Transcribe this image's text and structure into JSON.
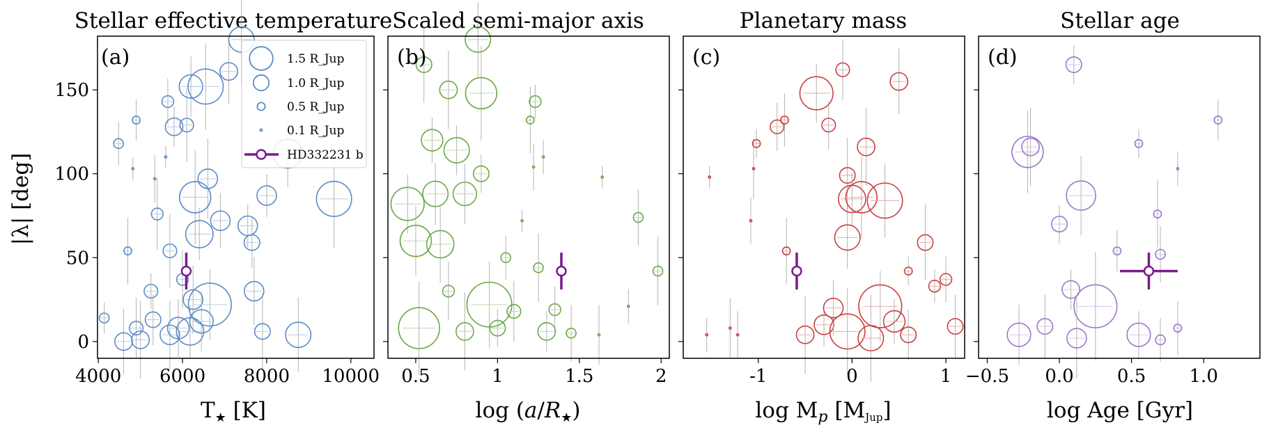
{
  "y_axis": {
    "label": "|λ| [deg]",
    "ylim": [
      -10,
      182
    ],
    "ticks": [
      0,
      50,
      100,
      150
    ]
  },
  "legend": {
    "placement": "upper-right of panel (a)",
    "size_entries": [
      "1.5 R_Jup",
      "1.0 R_Jup",
      "0.5 R_Jup",
      "0.1 R_Jup"
    ],
    "highlight_entry": "HD332231 b"
  },
  "chart_data": [
    {
      "type": "scatter",
      "panel_letter": "(a)",
      "title": "Stellar effective temperature",
      "xlabel": "T★ [K]",
      "xlim": [
        3980,
        10550
      ],
      "xticks": [
        4000,
        6000,
        8000,
        10000
      ],
      "ylim": [
        -10,
        182
      ],
      "color": "#5b8bc6",
      "highlight": {
        "name": "HD332231 b",
        "x": 6089,
        "y": 42,
        "xerr": 96,
        "yerr": 11
      },
      "points": [
        {
          "x": 4140,
          "y": 14,
          "r": 0.5
        },
        {
          "x": 4480,
          "y": 118,
          "r": 0.5
        },
        {
          "x": 4600,
          "y": 0,
          "r": 0.9
        },
        {
          "x": 4700,
          "y": 54,
          "r": 0.4
        },
        {
          "x": 4820,
          "y": 103,
          "r": 0.1
        },
        {
          "x": 4900,
          "y": 132,
          "r": 0.4
        },
        {
          "x": 4900,
          "y": 8,
          "r": 0.7
        },
        {
          "x": 5000,
          "y": 1,
          "r": 0.9
        },
        {
          "x": 5250,
          "y": 30,
          "r": 0.7
        },
        {
          "x": 5300,
          "y": 13,
          "r": 0.8
        },
        {
          "x": 5340,
          "y": 97,
          "r": 0.1
        },
        {
          "x": 5400,
          "y": 76,
          "r": 0.6
        },
        {
          "x": 5600,
          "y": 110,
          "r": 0.1
        },
        {
          "x": 5650,
          "y": 143,
          "r": 0.6
        },
        {
          "x": 5700,
          "y": 4,
          "r": 1.0
        },
        {
          "x": 5700,
          "y": 54,
          "r": 0.7
        },
        {
          "x": 5800,
          "y": 128,
          "r": 0.9
        },
        {
          "x": 5900,
          "y": 8,
          "r": 1.1
        },
        {
          "x": 6000,
          "y": 37,
          "r": 0.6
        },
        {
          "x": 6100,
          "y": 129,
          "r": 0.7
        },
        {
          "x": 6180,
          "y": 6,
          "r": 1.4
        },
        {
          "x": 6200,
          "y": 152,
          "r": 1.2
        },
        {
          "x": 6250,
          "y": 25,
          "r": 1.0
        },
        {
          "x": 6300,
          "y": 86,
          "r": 1.6
        },
        {
          "x": 6400,
          "y": 64,
          "r": 1.4
        },
        {
          "x": 6450,
          "y": 12,
          "r": 1.2
        },
        {
          "x": 6550,
          "y": 152,
          "r": 1.8
        },
        {
          "x": 6600,
          "y": 97,
          "r": 1.0
        },
        {
          "x": 6650,
          "y": 22,
          "r": 2.2
        },
        {
          "x": 6900,
          "y": 72,
          "r": 1.0
        },
        {
          "x": 7100,
          "y": 161,
          "r": 0.9
        },
        {
          "x": 7400,
          "y": 180,
          "r": 1.3
        },
        {
          "x": 7550,
          "y": 69,
          "r": 1.0
        },
        {
          "x": 7650,
          "y": 59,
          "r": 0.8
        },
        {
          "x": 7700,
          "y": 30,
          "r": 1.0
        },
        {
          "x": 7900,
          "y": 6,
          "r": 0.8
        },
        {
          "x": 8000,
          "y": 87,
          "r": 1.0
        },
        {
          "x": 8500,
          "y": 112,
          "r": 1.5
        },
        {
          "x": 8750,
          "y": 4,
          "r": 1.3
        },
        {
          "x": 9600,
          "y": 85,
          "r": 1.8
        }
      ]
    },
    {
      "type": "scatter",
      "panel_letter": "(b)",
      "title": "Scaled semi-major axis",
      "xlabel": "log (a/R★)",
      "xlim": [
        0.33,
        2.05
      ],
      "xticks": [
        0.5,
        1.0,
        1.5,
        2.0
      ],
      "ylim": [
        -10,
        182
      ],
      "color": "#6aa845",
      "highlight": {
        "name": "HD332231 b",
        "x": 1.39,
        "y": 42,
        "xerr": 0.01,
        "yerr": 11
      },
      "points": [
        {
          "x": 0.45,
          "y": 82,
          "r": 1.7
        },
        {
          "x": 0.5,
          "y": 60,
          "r": 1.6
        },
        {
          "x": 0.52,
          "y": 8,
          "r": 2.1
        },
        {
          "x": 0.55,
          "y": 165,
          "r": 0.8
        },
        {
          "x": 0.6,
          "y": 120,
          "r": 1.1
        },
        {
          "x": 0.62,
          "y": 88,
          "r": 1.3
        },
        {
          "x": 0.65,
          "y": 58,
          "r": 1.4
        },
        {
          "x": 0.7,
          "y": 150,
          "r": 0.9
        },
        {
          "x": 0.75,
          "y": 114,
          "r": 1.3
        },
        {
          "x": 0.8,
          "y": 88,
          "r": 1.2
        },
        {
          "x": 0.88,
          "y": 180,
          "r": 1.3
        },
        {
          "x": 0.9,
          "y": 148,
          "r": 1.6
        },
        {
          "x": 0.9,
          "y": 100,
          "r": 0.8
        },
        {
          "x": 0.95,
          "y": 22,
          "r": 2.3
        },
        {
          "x": 0.7,
          "y": 30,
          "r": 0.6
        },
        {
          "x": 0.8,
          "y": 6,
          "r": 0.9
        },
        {
          "x": 1.0,
          "y": 8,
          "r": 0.8
        },
        {
          "x": 1.05,
          "y": 50,
          "r": 0.5
        },
        {
          "x": 1.1,
          "y": 18,
          "r": 0.7
        },
        {
          "x": 1.2,
          "y": 132,
          "r": 0.4
        },
        {
          "x": 1.23,
          "y": 143,
          "r": 0.6
        },
        {
          "x": 1.28,
          "y": 110,
          "r": 0.1
        },
        {
          "x": 1.22,
          "y": 104,
          "r": 0.1
        },
        {
          "x": 1.25,
          "y": 44,
          "r": 0.5
        },
        {
          "x": 1.3,
          "y": 6,
          "r": 0.9
        },
        {
          "x": 1.35,
          "y": 19,
          "r": 0.6
        },
        {
          "x": 1.45,
          "y": 5,
          "r": 0.5
        },
        {
          "x": 1.62,
          "y": 4,
          "r": 0.1
        },
        {
          "x": 1.64,
          "y": 98,
          "r": 0.1
        },
        {
          "x": 1.8,
          "y": 21,
          "r": 0.1
        },
        {
          "x": 1.86,
          "y": 74,
          "r": 0.5
        },
        {
          "x": 1.98,
          "y": 42,
          "r": 0.5
        },
        {
          "x": 1.15,
          "y": 72,
          "r": 0.1
        }
      ]
    },
    {
      "type": "scatter",
      "panel_letter": "(c)",
      "title": "Planetary mass",
      "xlabel": "log M_p [M_Jup]",
      "xlim": [
        -1.8,
        1.2
      ],
      "xticks": [
        -1,
        0,
        1
      ],
      "ylim": [
        -10,
        182
      ],
      "color": "#c94040",
      "highlight": {
        "name": "HD332231 b",
        "x": -0.59,
        "y": 42,
        "xerr": 0.02,
        "yerr": 11
      },
      "points": [
        {
          "x": -1.52,
          "y": 98,
          "r": 0.1
        },
        {
          "x": -1.55,
          "y": 4,
          "r": 0.1
        },
        {
          "x": -1.08,
          "y": 72,
          "r": 0.1
        },
        {
          "x": -1.05,
          "y": 103,
          "r": 0.1
        },
        {
          "x": -1.02,
          "y": 118,
          "r": 0.4
        },
        {
          "x": -0.8,
          "y": 128,
          "r": 0.7
        },
        {
          "x": -0.72,
          "y": 132,
          "r": 0.4
        },
        {
          "x": -0.7,
          "y": 54,
          "r": 0.4
        },
        {
          "x": -0.38,
          "y": 148,
          "r": 1.7
        },
        {
          "x": -0.25,
          "y": 129,
          "r": 0.7
        },
        {
          "x": -0.1,
          "y": 162,
          "r": 0.7
        },
        {
          "x": -0.05,
          "y": 99,
          "r": 0.8
        },
        {
          "x": 0.0,
          "y": 85,
          "r": 1.4
        },
        {
          "x": -0.05,
          "y": 62,
          "r": 1.3
        },
        {
          "x": 0.1,
          "y": 86,
          "r": 1.6
        },
        {
          "x": 0.15,
          "y": 116,
          "r": 0.9
        },
        {
          "x": 0.3,
          "y": 21,
          "r": 2.2
        },
        {
          "x": 0.35,
          "y": 84,
          "r": 1.8
        },
        {
          "x": 0.5,
          "y": 155,
          "r": 0.9
        },
        {
          "x": 0.78,
          "y": 59,
          "r": 0.8
        },
        {
          "x": 0.88,
          "y": 33,
          "r": 0.6
        },
        {
          "x": 1.0,
          "y": 37,
          "r": 0.6
        },
        {
          "x": 1.1,
          "y": 9,
          "r": 0.8
        },
        {
          "x": -0.5,
          "y": 4,
          "r": 0.9
        },
        {
          "x": -0.3,
          "y": 10,
          "r": 1.0
        },
        {
          "x": -0.2,
          "y": 20,
          "r": 1.0
        },
        {
          "x": -0.05,
          "y": 6,
          "r": 1.8
        },
        {
          "x": 0.2,
          "y": 2,
          "r": 1.3
        },
        {
          "x": 0.45,
          "y": 12,
          "r": 1.1
        },
        {
          "x": 0.6,
          "y": 4,
          "r": 0.8
        },
        {
          "x": -1.22,
          "y": 4,
          "r": 0.1
        },
        {
          "x": -1.3,
          "y": 8,
          "r": 0.1
        },
        {
          "x": 0.6,
          "y": 42,
          "r": 0.4
        }
      ]
    },
    {
      "type": "scatter",
      "panel_letter": "(d)",
      "title": "Stellar age",
      "xlabel": "log Age [Gyr]",
      "xlim": [
        -0.56,
        1.39
      ],
      "xticks": [
        -0.5,
        0.0,
        0.5,
        1.0
      ],
      "xtick_labels": [
        "−0.5",
        "0.0",
        "0.5",
        "1.0"
      ],
      "ylim": [
        -10,
        182
      ],
      "color": "#9b77c9",
      "highlight": {
        "name": "HD332231 b",
        "x": 0.62,
        "y": 42,
        "xerr": 0.2,
        "yerr": 11
      },
      "points": [
        {
          "x": 0.1,
          "y": 165,
          "r": 0.8
        },
        {
          "x": 1.1,
          "y": 132,
          "r": 0.4
        },
        {
          "x": -0.22,
          "y": 113,
          "r": 1.6
        },
        {
          "x": -0.2,
          "y": 116,
          "r": 0.9
        },
        {
          "x": 0.55,
          "y": 118,
          "r": 0.4
        },
        {
          "x": 0.82,
          "y": 103,
          "r": 0.1
        },
        {
          "x": 0.15,
          "y": 87,
          "r": 1.5
        },
        {
          "x": 0.68,
          "y": 76,
          "r": 0.4
        },
        {
          "x": 0.0,
          "y": 70,
          "r": 0.8
        },
        {
          "x": 0.4,
          "y": 54,
          "r": 0.4
        },
        {
          "x": 0.7,
          "y": 52,
          "r": 0.5
        },
        {
          "x": 0.25,
          "y": 21,
          "r": 2.2
        },
        {
          "x": 0.08,
          "y": 31,
          "r": 0.9
        },
        {
          "x": -0.28,
          "y": 4,
          "r": 1.2
        },
        {
          "x": -0.1,
          "y": 9,
          "r": 0.8
        },
        {
          "x": 0.12,
          "y": 2,
          "r": 1.0
        },
        {
          "x": 0.55,
          "y": 4,
          "r": 1.2
        },
        {
          "x": 0.7,
          "y": 1,
          "r": 0.5
        },
        {
          "x": 0.82,
          "y": 8,
          "r": 0.4
        }
      ]
    }
  ]
}
